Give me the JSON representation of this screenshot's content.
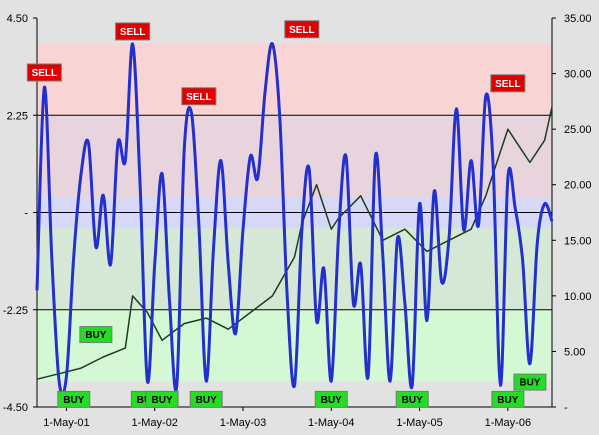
{
  "chart_data": {
    "type": "line",
    "title": "",
    "xlabel": "",
    "ylabel": "",
    "x_tick_labels": [
      "1-May-01",
      "1-May-02",
      "1-May-03",
      "1-May-04",
      "1-May-05",
      "1-May-06"
    ],
    "x_range": [
      "2001-01",
      "2006-11"
    ],
    "left_axis": {
      "ylim": [
        -4.5,
        4.5
      ],
      "tick_labels": [
        "4.50",
        "2.25",
        "-",
        "-2.25",
        "-4.50"
      ],
      "tick_values": [
        4.5,
        2.25,
        0,
        -2.25,
        -4.5
      ]
    },
    "right_axis": {
      "ylim": [
        0,
        35
      ],
      "tick_labels": [
        "35.00",
        "30.00",
        "25.00",
        "20.00",
        "15.00",
        "10.00",
        "5.00",
        "-"
      ],
      "tick_values": [
        35,
        30,
        25,
        20,
        15,
        10,
        5,
        0
      ]
    },
    "bands": [
      {
        "from": 2.25,
        "to": 3.9,
        "color": "#f9d4d4"
      },
      {
        "from": 0.35,
        "to": 2.25,
        "color": "#e8d4dc"
      },
      {
        "from": -0.35,
        "to": 0.35,
        "color": "#d7d7f7"
      },
      {
        "from": -2.25,
        "to": -0.35,
        "color": "#d5e8d5"
      },
      {
        "from": -3.9,
        "to": -2.25,
        "color": "#d4f7d4"
      }
    ],
    "reference_lines": [
      2.25,
      0,
      -2.25
    ],
    "series": [
      {
        "axis": "left",
        "color": "#2430cc",
        "x": [
          "2001-01",
          "2001-02",
          "2001-03",
          "2001-04",
          "2001-05",
          "2001-06",
          "2001-07",
          "2001-08",
          "2001-09",
          "2001-10",
          "2001-11",
          "2001-12",
          "2002-01",
          "2002-02",
          "2002-03",
          "2002-04",
          "2002-05",
          "2002-06",
          "2002-07",
          "2002-08",
          "2002-09",
          "2002-10",
          "2002-11",
          "2002-12",
          "2003-01",
          "2003-02",
          "2003-03",
          "2003-04",
          "2003-05",
          "2003-06",
          "2003-07",
          "2003-08",
          "2003-09",
          "2003-10",
          "2003-11",
          "2003-12",
          "2004-01",
          "2004-02",
          "2004-03",
          "2004-04",
          "2004-05",
          "2004-06",
          "2004-07",
          "2004-08",
          "2004-09",
          "2004-10",
          "2004-11",
          "2004-12",
          "2005-01",
          "2005-02",
          "2005-03",
          "2005-04",
          "2005-05",
          "2005-06",
          "2005-07",
          "2005-08",
          "2005-09",
          "2005-10",
          "2005-11",
          "2005-12",
          "2006-01",
          "2006-02",
          "2006-03",
          "2006-04",
          "2006-05",
          "2006-06",
          "2006-07",
          "2006-08",
          "2006-09",
          "2006-10",
          "2006-11"
        ],
        "values": [
          -1.8,
          2.9,
          -1.0,
          -3.9,
          -3.8,
          -1.0,
          0.9,
          1.6,
          -0.8,
          0.4,
          -1.2,
          1.6,
          1.2,
          3.9,
          0.7,
          -3.9,
          -1.2,
          0.9,
          -2.0,
          -4.0,
          1.4,
          2.3,
          -0.3,
          -3.9,
          -0.8,
          1.2,
          -1.2,
          -2.8,
          -0.4,
          1.3,
          0.8,
          2.8,
          3.9,
          2.2,
          -1.9,
          -4.0,
          -0.4,
          1.0,
          -2.5,
          -1.3,
          -3.9,
          -0.5,
          1.3,
          -2.1,
          -1.2,
          -3.8,
          1.3,
          -1.0,
          -3.9,
          -0.6,
          -2.1,
          -4.0,
          0.2,
          -2.5,
          0.5,
          -1.6,
          -0.6,
          2.4,
          -0.4,
          1.2,
          -0.3,
          2.7,
          1.1,
          -4.0,
          0.8,
          0.1,
          -1.1,
          -3.5,
          -0.7,
          0.2,
          -0.2
        ]
      },
      {
        "axis": "right",
        "color": "#1e3d1e",
        "x": [
          "2001-01",
          "2001-04",
          "2001-07",
          "2001-10",
          "2002-01",
          "2002-02",
          "2002-04",
          "2002-06",
          "2002-09",
          "2002-12",
          "2003-03",
          "2003-06",
          "2003-09",
          "2003-12",
          "2004-01",
          "2004-03",
          "2004-04",
          "2004-05",
          "2004-06",
          "2004-09",
          "2004-12",
          "2005-03",
          "2005-06",
          "2005-09",
          "2005-12",
          "2006-02",
          "2006-03",
          "2006-05",
          "2006-06",
          "2006-08",
          "2006-10",
          "2006-11"
        ],
        "values": [
          2.5,
          3.0,
          3.5,
          4.5,
          5.3,
          10.0,
          8.5,
          6.0,
          7.5,
          8.0,
          7.0,
          8.5,
          10.0,
          13.5,
          16.5,
          20.0,
          18.0,
          16.0,
          17.0,
          19.0,
          15.0,
          16.0,
          14.0,
          15.0,
          16.0,
          19.0,
          21.0,
          25.0,
          24.0,
          22.0,
          24.0,
          27.0
        ]
      }
    ],
    "signals": [
      {
        "label": "SELL",
        "type": "sell",
        "x": "2001-02",
        "value": 2.95
      },
      {
        "label": "SELL",
        "type": "sell",
        "x": "2002-02",
        "value": 3.9
      },
      {
        "label": "SELL",
        "type": "sell",
        "x": "2002-11",
        "value": 2.4
      },
      {
        "label": "SELL",
        "type": "sell",
        "x": "2004-01",
        "value": 3.95
      },
      {
        "label": "SELL",
        "type": "sell",
        "x": "2006-05",
        "value": 2.7
      },
      {
        "label": "BUY",
        "type": "buy",
        "x": "2001-09",
        "value": -2.5
      },
      {
        "label": "BUY",
        "type": "buy",
        "x": "2001-06",
        "value": -4.0
      },
      {
        "label": "BUY",
        "type": "buy",
        "x": "2002-04",
        "value": -4.0
      },
      {
        "label": "BUY",
        "type": "buy",
        "x": "2002-06",
        "value": -4.0
      },
      {
        "label": "BUY",
        "type": "buy",
        "x": "2002-12",
        "value": -4.0
      },
      {
        "label": "BUY",
        "type": "buy",
        "x": "2004-05",
        "value": -4.0
      },
      {
        "label": "BUY",
        "type": "buy",
        "x": "2005-04",
        "value": -4.0
      },
      {
        "label": "BUY",
        "type": "buy",
        "x": "2006-05",
        "value": -4.0
      },
      {
        "label": "BUY",
        "type": "buy",
        "x": "2006-08",
        "value": -3.6
      }
    ],
    "colors": {
      "sell_fill": "#e00000",
      "sell_text": "#ffffff",
      "buy_fill": "#22dd22",
      "buy_text": "#000000"
    }
  }
}
